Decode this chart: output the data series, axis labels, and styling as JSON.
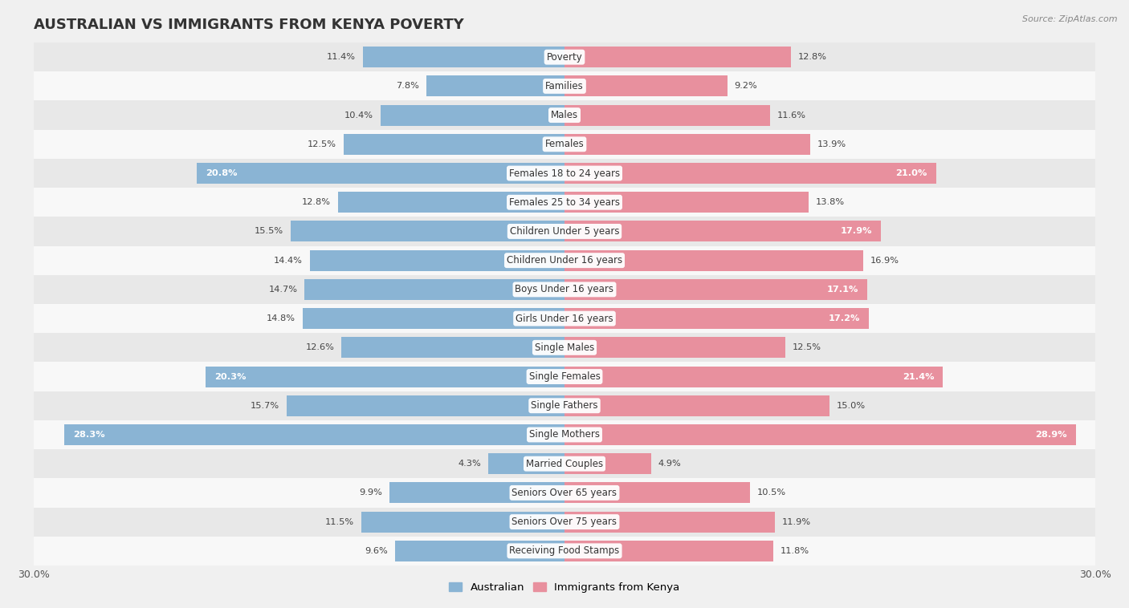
{
  "title": "AUSTRALIAN VS IMMIGRANTS FROM KENYA POVERTY",
  "source": "Source: ZipAtlas.com",
  "categories": [
    "Poverty",
    "Families",
    "Males",
    "Females",
    "Females 18 to 24 years",
    "Females 25 to 34 years",
    "Children Under 5 years",
    "Children Under 16 years",
    "Boys Under 16 years",
    "Girls Under 16 years",
    "Single Males",
    "Single Females",
    "Single Fathers",
    "Single Mothers",
    "Married Couples",
    "Seniors Over 65 years",
    "Seniors Over 75 years",
    "Receiving Food Stamps"
  ],
  "australian": [
    11.4,
    7.8,
    10.4,
    12.5,
    20.8,
    12.8,
    15.5,
    14.4,
    14.7,
    14.8,
    12.6,
    20.3,
    15.7,
    28.3,
    4.3,
    9.9,
    11.5,
    9.6
  ],
  "kenya": [
    12.8,
    9.2,
    11.6,
    13.9,
    21.0,
    13.8,
    17.9,
    16.9,
    17.1,
    17.2,
    12.5,
    21.4,
    15.0,
    28.9,
    4.9,
    10.5,
    11.9,
    11.8
  ],
  "australian_color": "#8ab4d4",
  "kenya_color": "#e8909e",
  "australian_label": "Australian",
  "kenya_label": "Immigrants from Kenya",
  "xlim": 30.0,
  "bar_height": 0.72,
  "bg_color": "#f0f0f0",
  "row_color_odd": "#e8e8e8",
  "row_color_even": "#f8f8f8",
  "title_fontsize": 13,
  "label_fontsize": 8.5,
  "value_fontsize": 8.2,
  "axis_label_fontsize": 9,
  "inside_threshold": 17.0
}
